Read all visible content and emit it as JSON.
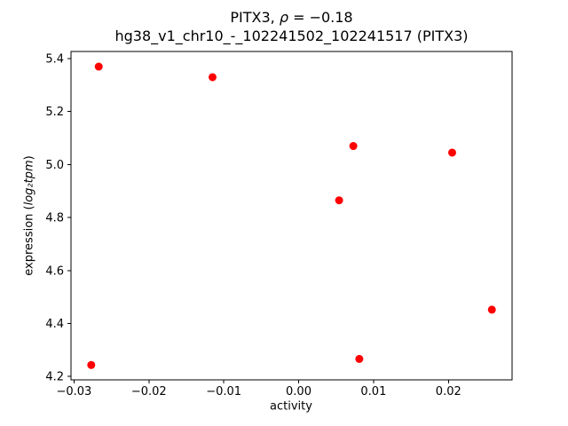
{
  "chart_data": {
    "type": "scatter",
    "title": "PITX3, ρ = −0.18",
    "title_parts": {
      "pre": "PITX3, ",
      "math": "ρ",
      "post": " = −0.18"
    },
    "subtitle": "hg38_v1_chr10_-_102241502_102241517 (PITX3)",
    "xlabel": "activity",
    "ylabel": "expression (log₂tpm)",
    "ylabel_parts": {
      "pre": "expression (",
      "math": "log₂tpm",
      "post": ")"
    },
    "xlim": [
      -0.0304,
      0.0285
    ],
    "ylim": [
      4.187,
      5.427
    ],
    "x_ticks": {
      "values": [
        -0.03,
        -0.02,
        -0.01,
        0.0,
        0.01,
        0.02
      ],
      "labels": [
        "−0.03",
        "−0.02",
        "−0.01",
        "0.00",
        "0.01",
        "0.02"
      ]
    },
    "y_ticks": {
      "values": [
        4.2,
        4.4,
        4.6,
        4.8,
        5.0,
        5.2,
        5.4
      ],
      "labels": [
        "4.2",
        "4.4",
        "4.6",
        "4.8",
        "5.0",
        "5.2",
        "5.4"
      ]
    },
    "marker_color": "#ff0000",
    "grid": false,
    "legend": "none",
    "points": [
      [
        -0.0267,
        5.37
      ],
      [
        -0.0115,
        5.33
      ],
      [
        0.0073,
        5.07
      ],
      [
        0.0205,
        5.045
      ],
      [
        0.0054,
        4.865
      ],
      [
        0.0258,
        4.452
      ],
      [
        0.0081,
        4.266
      ],
      [
        -0.0277,
        4.243
      ]
    ]
  }
}
